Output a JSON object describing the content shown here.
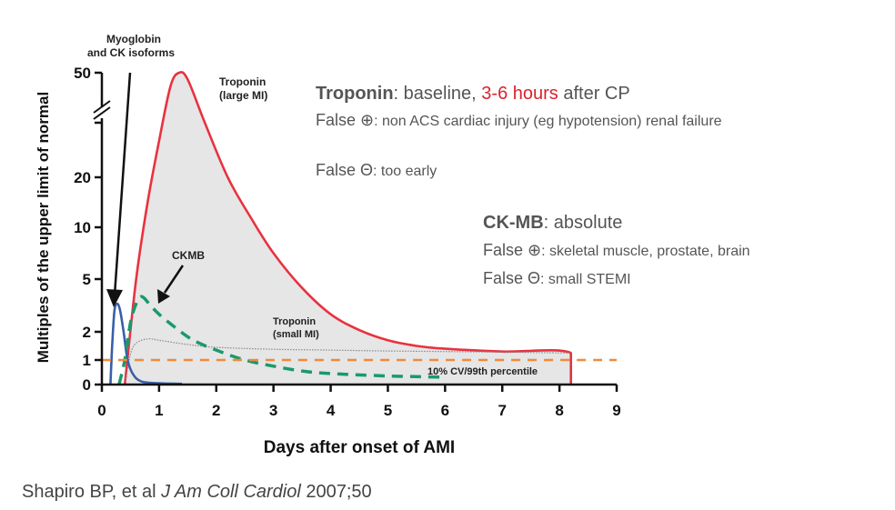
{
  "chart_data": {
    "type": "line",
    "title": "",
    "xlabel": "Days after onset of AMI",
    "ylabel": "Multiples of the upper limit of normal",
    "xlim": [
      0,
      9
    ],
    "ylim": [
      0,
      50
    ],
    "x_ticks": [
      "0",
      "1",
      "2",
      "3",
      "4",
      "5",
      "6",
      "7",
      "8",
      "9"
    ],
    "y_ticks": [
      "0",
      "1",
      "2",
      "5",
      "10",
      "20",
      "50"
    ],
    "y_axis_break": true,
    "grid": false,
    "series": [
      {
        "name": "Troponin (large MI)",
        "color": "#e8323f",
        "style": "solid",
        "fill": "#e6e6e6",
        "points": [
          [
            0.4,
            0
          ],
          [
            0.6,
            5
          ],
          [
            0.8,
            15
          ],
          [
            1.0,
            30
          ],
          [
            1.2,
            46
          ],
          [
            1.35,
            50
          ],
          [
            1.5,
            48
          ],
          [
            1.8,
            35
          ],
          [
            2.2,
            20
          ],
          [
            2.6,
            12
          ],
          [
            3.0,
            7.5
          ],
          [
            3.5,
            4.5
          ],
          [
            4.0,
            3
          ],
          [
            4.5,
            2.1
          ],
          [
            5.0,
            1.7
          ],
          [
            5.5,
            1.5
          ],
          [
            6.0,
            1.4
          ],
          [
            7.0,
            1.3
          ],
          [
            8.2,
            1.25
          ],
          [
            8.2,
            0
          ]
        ]
      },
      {
        "name": "Troponin (small MI)",
        "color": "#888888",
        "style": "dotted",
        "points": [
          [
            0.4,
            0
          ],
          [
            0.5,
            1.2
          ],
          [
            0.6,
            1.6
          ],
          [
            0.8,
            1.75
          ],
          [
            1.0,
            1.7
          ],
          [
            1.5,
            1.55
          ],
          [
            2.0,
            1.45
          ],
          [
            3.0,
            1.38
          ],
          [
            4.0,
            1.35
          ],
          [
            5.0,
            1.32
          ],
          [
            6.0,
            1.3
          ],
          [
            7.0,
            1.28
          ],
          [
            8.2,
            1.25
          ]
        ]
      },
      {
        "name": "Myoglobin and CK isoforms",
        "color": "#3a5fa8",
        "style": "solid",
        "points": [
          [
            0.15,
            0
          ],
          [
            0.18,
            1.5
          ],
          [
            0.22,
            3.2
          ],
          [
            0.27,
            3.6
          ],
          [
            0.32,
            3.2
          ],
          [
            0.38,
            2
          ],
          [
            0.45,
            1
          ],
          [
            0.55,
            0.4
          ],
          [
            0.7,
            0.12
          ],
          [
            1.0,
            0.05
          ],
          [
            1.4,
            0.03
          ]
        ]
      },
      {
        "name": "CKMB",
        "color": "#1a9a6a",
        "style": "dashed",
        "points": [
          [
            0.3,
            0
          ],
          [
            0.4,
            1
          ],
          [
            0.5,
            2.5
          ],
          [
            0.6,
            3.6
          ],
          [
            0.7,
            4
          ],
          [
            0.85,
            3.5
          ],
          [
            1.0,
            3
          ],
          [
            1.3,
            2.2
          ],
          [
            1.6,
            1.7
          ],
          [
            2.0,
            1.35
          ],
          [
            2.5,
            1
          ],
          [
            3.0,
            0.75
          ],
          [
            3.5,
            0.55
          ],
          [
            4.0,
            0.45
          ],
          [
            5.0,
            0.35
          ],
          [
            6.0,
            0.3
          ]
        ]
      },
      {
        "name": "10% CV/99th percentile",
        "color": "#f08a3c",
        "style": "dashed",
        "points": [
          [
            0,
            1
          ],
          [
            9,
            1
          ]
        ]
      }
    ],
    "annotations": [
      {
        "label_lines": [
          "Myoglobin",
          "and CK isoforms"
        ],
        "arrow_to": [
          0.25,
          4
        ]
      },
      {
        "label_lines": [
          "Troponin",
          "(large MI)"
        ]
      },
      {
        "label_lines": [
          "CKMB"
        ],
        "arrow_to": [
          0.85,
          3.8
        ]
      },
      {
        "label_lines": [
          "Troponin",
          "(small MI)"
        ]
      },
      {
        "label_lines": [
          "10% CV/99th percentile"
        ]
      }
    ]
  },
  "notes": {
    "troponin": {
      "title": "Troponin",
      "title_rest_1": ": baseline, ",
      "highlight": "3-6 hours",
      "title_rest_2": " after CP",
      "false_pos_label": "False ⊕",
      "false_pos_text": ": non ACS cardiac injury (eg hypotension) renal failure",
      "false_neg_label": "False Θ",
      "false_neg_text": ": too early"
    },
    "ckmb": {
      "title": "CK-MB",
      "title_rest": ": absolute",
      "false_pos_label": "False ⊕",
      "false_pos_text": ": skeletal muscle, prostate, brain",
      "false_neg_label": "False Θ",
      "false_neg_text": ": small STEMI"
    }
  },
  "citation": {
    "authors": "Shapiro BP,  et al ",
    "journal": "J Am Coll Cardiol",
    "volume": " 2007;50"
  },
  "colors": {
    "highlight": "#d9232e",
    "text": "#555555"
  }
}
